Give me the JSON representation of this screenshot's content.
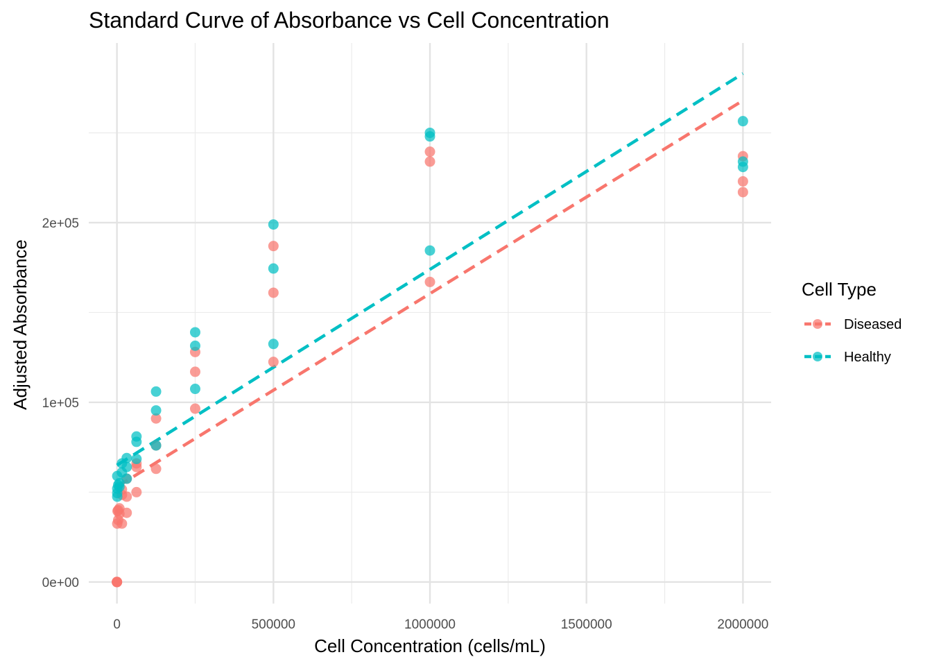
{
  "chart_data": {
    "type": "scatter",
    "title": "Standard Curve of Absorbance vs Cell Concentration",
    "xlabel": "Cell Concentration (cells/mL)",
    "ylabel": "Adjusted Absorbance",
    "xlim": [
      -90000,
      2090000
    ],
    "ylim": [
      -12000,
      300000
    ],
    "x_ticks": [
      0,
      500000,
      1000000,
      1500000,
      2000000
    ],
    "x_tick_labels": [
      "0",
      "500000",
      "1000000",
      "1500000",
      "2000000"
    ],
    "x_minor_ticks": [
      250000,
      750000,
      1250000,
      1750000
    ],
    "y_ticks": [
      0,
      100000,
      200000
    ],
    "y_tick_labels": [
      "0e+00",
      "1e+05",
      "2e+05"
    ],
    "y_minor_ticks": [
      50000,
      150000,
      250000
    ],
    "legend_title": "Cell Type",
    "legend_position": "right",
    "grid": true,
    "series": [
      {
        "name": "Diseased",
        "color": "#F8766D",
        "points": [
          [
            0,
            0
          ],
          [
            0,
            0
          ],
          [
            0,
            0
          ],
          [
            0,
            0
          ],
          [
            1000,
            32500
          ],
          [
            2000,
            39500
          ],
          [
            4000,
            34500
          ],
          [
            4000,
            40000
          ],
          [
            8000,
            38000
          ],
          [
            8000,
            41000
          ],
          [
            16000,
            32500
          ],
          [
            16000,
            48500
          ],
          [
            16000,
            51500
          ],
          [
            31250,
            38500
          ],
          [
            31250,
            47500
          ],
          [
            31250,
            57500
          ],
          [
            62500,
            50000
          ],
          [
            62500,
            64000
          ],
          [
            62500,
            66000
          ],
          [
            125000,
            63000
          ],
          [
            125000,
            76000
          ],
          [
            125000,
            91000
          ],
          [
            250000,
            96500
          ],
          [
            250000,
            117000
          ],
          [
            250000,
            128000
          ],
          [
            500000,
            122500
          ],
          [
            500000,
            161000
          ],
          [
            500000,
            187000
          ],
          [
            1000000,
            167000
          ],
          [
            1000000,
            234000
          ],
          [
            1000000,
            239500
          ],
          [
            2000000,
            217000
          ],
          [
            2000000,
            223000
          ],
          [
            2000000,
            237000
          ]
        ],
        "fit": {
          "x": [
            0,
            2000000
          ],
          "y": [
            53000,
            268000
          ]
        }
      },
      {
        "name": "Healthy",
        "color": "#00BFC4",
        "points": [
          [
            1000,
            47500
          ],
          [
            1000,
            49500
          ],
          [
            1000,
            52000
          ],
          [
            1000,
            59000
          ],
          [
            4000,
            54000
          ],
          [
            8000,
            53000
          ],
          [
            8000,
            55000
          ],
          [
            16000,
            61000
          ],
          [
            16000,
            66000
          ],
          [
            31250,
            57500
          ],
          [
            31250,
            64000
          ],
          [
            31250,
            69000
          ],
          [
            62500,
            68500
          ],
          [
            62500,
            78000
          ],
          [
            62500,
            81000
          ],
          [
            125000,
            76000
          ],
          [
            125000,
            95500
          ],
          [
            125000,
            106000
          ],
          [
            250000,
            107500
          ],
          [
            250000,
            131500
          ],
          [
            250000,
            139000
          ],
          [
            500000,
            132500
          ],
          [
            500000,
            174500
          ],
          [
            500000,
            199000
          ],
          [
            1000000,
            184500
          ],
          [
            1000000,
            248000
          ],
          [
            1000000,
            250000
          ],
          [
            2000000,
            231000
          ],
          [
            2000000,
            234000
          ],
          [
            2000000,
            256500
          ]
        ],
        "fit": {
          "x": [
            0,
            2000000
          ],
          "y": [
            65000,
            283000
          ]
        }
      }
    ]
  }
}
